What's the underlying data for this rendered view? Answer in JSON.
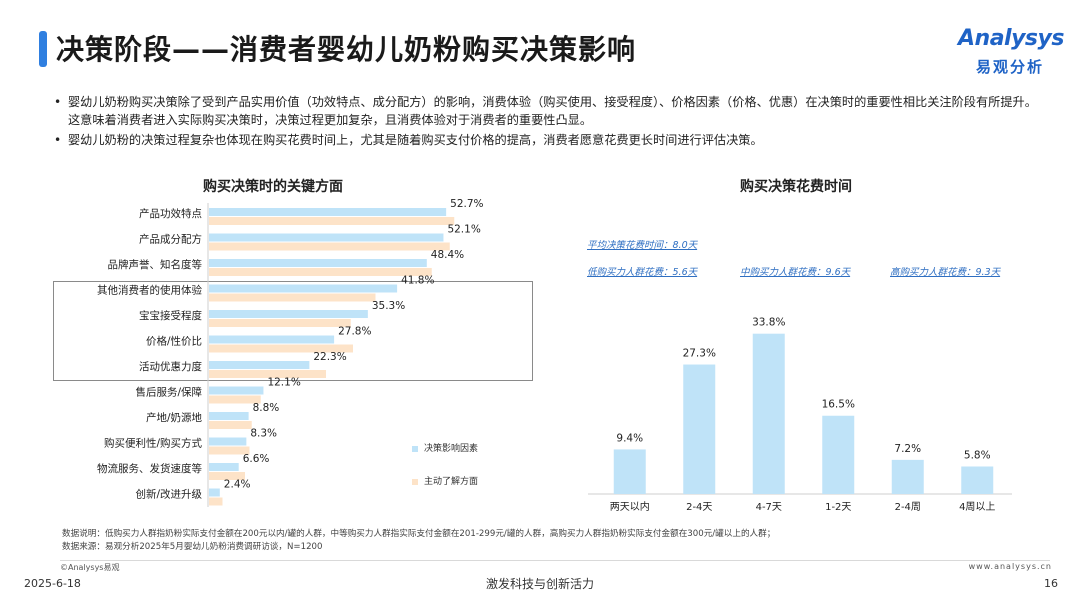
{
  "header": {
    "title": "决策阶段——消费者婴幼儿奶粉购买决策影响",
    "logo_en": "Analysys",
    "logo_cn": "易观分析"
  },
  "bullets": [
    "婴幼儿奶粉购买决策除了受到产品实用价值（功效特点、成分配方）的影响，消费体验（购买使用、接受程度）、价格因素（价格、优惠）在决策时的重要性相比关注阶段有所提升。这意味着消费者进入实际购买决策时，决策过程更加复杂，且消费体验对于消费者的重要性凸显。",
    "婴幼儿奶粉的决策过程复杂也体现在购买花费时间上，尤其是随着购买支付价格的提高，消费者愿意花费更长时间进行评估决策。"
  ],
  "colors": {
    "accent": "#2f7fe0",
    "bar_blue": "#bfe3f8",
    "bar_peach": "#fde3c8",
    "avg_text": "#2f6fc2"
  },
  "left_chart": {
    "title": "购买决策时的关键方面",
    "legend": [
      "决策影响因素",
      "主动了解方面"
    ]
  },
  "right_chart": {
    "title": "购买决策花费时间",
    "avg_label": "平均决策花费时间：8.0天",
    "segment_labels": [
      "低购买力人群花费：5.6天",
      "中购买力人群花费：9.6天",
      "高购买力人群花费：9.3天"
    ]
  },
  "chart_data": [
    {
      "type": "bar",
      "orientation": "horizontal",
      "title": "购买决策时的关键方面",
      "categories": [
        "产品功效特点",
        "产品成分配方",
        "品牌声誉、知名度等",
        "其他消费者的使用体验",
        "宝宝接受程度",
        "价格/性价比",
        "活动优惠力度",
        "售后服务/保障",
        "产地/奶源地",
        "购买便利性/购买方式",
        "物流服务、发货速度等",
        "创新/改进升级"
      ],
      "series": [
        {
          "name": "决策影响因素",
          "values": [
            52.7,
            52.1,
            48.4,
            41.8,
            35.3,
            27.8,
            22.3,
            12.1,
            8.8,
            8.3,
            6.6,
            2.4
          ]
        },
        {
          "name": "主动了解方面",
          "values": [
            54.5,
            53.5,
            49.5,
            37.0,
            31.5,
            32.0,
            26.0,
            11.5,
            9.5,
            9.0,
            8.0,
            3.0
          ]
        }
      ],
      "value_labels": [
        "52.7%",
        "52.1%",
        "48.4%",
        "41.8%",
        "35.3%",
        "27.8%",
        "22.3%",
        "12.1%",
        "8.8%",
        "8.3%",
        "6.6%",
        "2.4%"
      ],
      "highlighted_categories": [
        "其他消费者的使用体验",
        "宝宝接受程度",
        "价格/性价比",
        "活动优惠力度"
      ],
      "xlim": [
        0,
        60
      ]
    },
    {
      "type": "bar",
      "title": "购买决策花费时间",
      "categories": [
        "两天以内",
        "2-4天",
        "4-7天",
        "1-2天",
        "2-4周",
        "4周以上"
      ],
      "values": [
        9.4,
        27.3,
        33.8,
        16.5,
        7.2,
        5.8
      ],
      "value_labels": [
        "9.4%",
        "27.3%",
        "33.8%",
        "16.5%",
        "7.2%",
        "5.8%"
      ],
      "ylim": [
        0,
        35
      ]
    }
  ],
  "notes": {
    "explanation": "数据说明：低购买力人群指奶粉实际支付金额在200元以内/罐的人群，中等购买力人群指实际支付金额在201-299元/罐的人群，高购买力人群指奶粉实际支付金额在300元/罐以上的人群；",
    "source": "数据来源：易观分析2025年5月婴幼儿奶粉消费调研访谈，N=1200"
  },
  "footer": {
    "copyright": "©Analysys易观",
    "website": "www.analysys.cn",
    "date": "2025-6-18",
    "slogan": "激发科技与创新活力",
    "page": "16"
  }
}
